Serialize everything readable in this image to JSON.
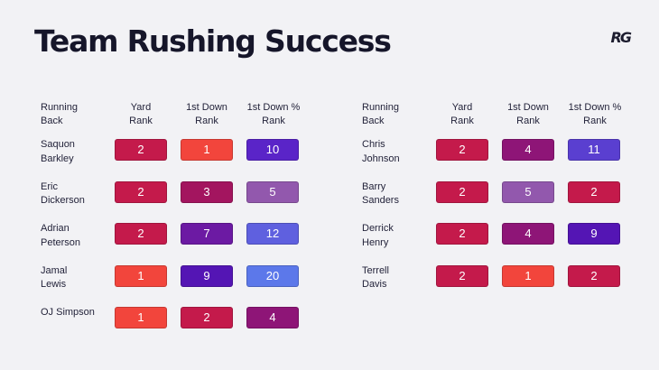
{
  "title": "Team Rushing Success",
  "logo": "RG",
  "chart_data": {
    "type": "table",
    "title": "Team Rushing Success",
    "columns": [
      "Running Back",
      "Yard Rank",
      "1st Down Rank",
      "1st Down % Rank"
    ],
    "header_lines": {
      "name": [
        "Running",
        "Back"
      ],
      "yard": [
        "Yard",
        "Rank"
      ],
      "first": [
        "1st Down",
        "Rank"
      ],
      "pct": [
        "1st Down %",
        "Rank"
      ]
    },
    "color_scale": {
      "1": "#f2453c",
      "2": "#c41a4b",
      "3": "#a3155f",
      "4": "#8e1577",
      "5": "#9258ad",
      "7": "#6c1aa3",
      "9": "#5415b4",
      "10": "#5a24c8",
      "11": "#5a3fd0",
      "12": "#5f60df",
      "20": "#5c78ea"
    },
    "tables": [
      {
        "rows": [
          {
            "name_lines": [
              "Saquon",
              "Barkley"
            ],
            "yard_rank": 2,
            "first_down_rank": 1,
            "first_down_pct_rank": 10
          },
          {
            "name_lines": [
              "Eric",
              "Dickerson"
            ],
            "yard_rank": 2,
            "first_down_rank": 3,
            "first_down_pct_rank": 5
          },
          {
            "name_lines": [
              "Adrian",
              "Peterson"
            ],
            "yard_rank": 2,
            "first_down_rank": 7,
            "first_down_pct_rank": 12
          },
          {
            "name_lines": [
              "Jamal",
              "Lewis"
            ],
            "yard_rank": 1,
            "first_down_rank": 9,
            "first_down_pct_rank": 20
          },
          {
            "name_lines": [
              "OJ Simpson"
            ],
            "yard_rank": 1,
            "first_down_rank": 2,
            "first_down_pct_rank": 4
          }
        ]
      },
      {
        "rows": [
          {
            "name_lines": [
              "Chris",
              "Johnson"
            ],
            "yard_rank": 2,
            "first_down_rank": 4,
            "first_down_pct_rank": 11
          },
          {
            "name_lines": [
              "Barry",
              "Sanders"
            ],
            "yard_rank": 2,
            "first_down_rank": 5,
            "first_down_pct_rank": 2
          },
          {
            "name_lines": [
              "Derrick",
              "Henry"
            ],
            "yard_rank": 2,
            "first_down_rank": 4,
            "first_down_pct_rank": 9
          },
          {
            "name_lines": [
              "Terrell",
              "Davis"
            ],
            "yard_rank": 2,
            "first_down_rank": 1,
            "first_down_pct_rank": 2
          }
        ]
      }
    ]
  }
}
